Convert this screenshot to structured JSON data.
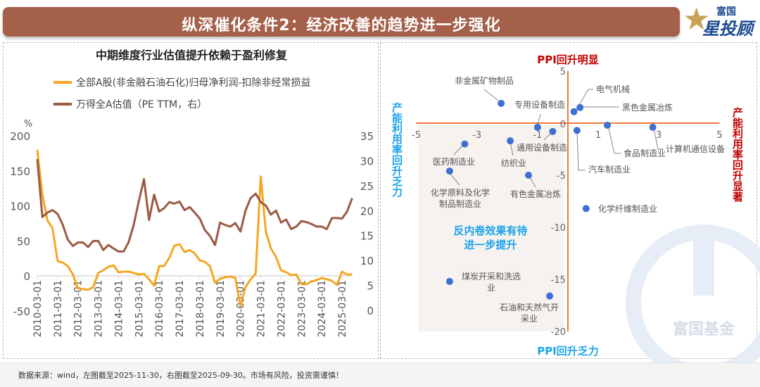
{
  "header": {
    "title": "纵深催化条件2：经济改善的趋势进一步强化"
  },
  "logo": {
    "top": "富国",
    "main": "星投顾",
    "watermark": "富国基金"
  },
  "footer": {
    "note": "数据来源：wind，左图截至2025-11-30，右图截至2025-09-30。市场有风险，投资需谨慎！"
  },
  "colors": {
    "banner": "#a5604a",
    "earnings": "#f5a623",
    "pe": "#9b5a43",
    "axis_orange": "#f07a3c",
    "dot": "#3f6fd0",
    "red": "#c00000",
    "blue": "#1aa3e8"
  },
  "chart_data": [
    {
      "type": "line",
      "title": "中期维度行业估值提升依赖于盈利修复",
      "y_unit": "%",
      "x_tick_labels": [
        "2010-03-01",
        "2011-03-01",
        "2012-03-01",
        "2013-03-01",
        "2014-03-01",
        "2015-03-01",
        "2016-03-01",
        "2017-03-01",
        "2018-03-01",
        "2019-03-01",
        "2020-03-01",
        "2021-03-01",
        "2022-03-01",
        "2023-03-01",
        "2024-03-01",
        "2025-03-01"
      ],
      "x_start": "2010-03",
      "x_frequency": "quarterly",
      "ylim_left": [
        -50,
        200
      ],
      "yticks_left": [
        -50,
        0,
        50,
        100,
        150,
        200
      ],
      "ylim_right": [
        0,
        35
      ],
      "yticks_right": [
        0,
        5,
        10,
        15,
        20,
        25,
        30,
        35
      ],
      "legend_position": "top-left",
      "series": [
        {
          "name": "全部A股(非金融石油石化)归母净利润-扣除非经常损益",
          "axis": "left",
          "values": [
            180,
            116,
            79,
            68,
            21,
            19,
            14,
            2,
            -18,
            -19,
            -20,
            -16,
            4,
            8,
            13,
            15,
            5,
            6,
            6,
            4,
            2,
            3,
            -5,
            -14,
            14,
            14,
            26,
            43,
            45,
            34,
            37,
            32,
            22,
            20,
            14,
            -10,
            -4,
            -2,
            -1,
            -3,
            -43,
            -16,
            -5,
            3,
            142,
            63,
            39,
            27,
            8,
            5,
            1,
            2,
            -12,
            -12,
            -8,
            -6,
            -3,
            -5,
            -7,
            -13,
            6,
            2,
            2
          ]
        },
        {
          "name": "万得全A估值（PE TTM，右）",
          "axis": "right",
          "values": [
            30.3,
            18.7,
            19.6,
            20.1,
            19.3,
            17.2,
            14.2,
            12.9,
            13.6,
            13.6,
            12.7,
            13.9,
            13.9,
            12.1,
            13.1,
            12.4,
            11.8,
            11.8,
            13.7,
            17.2,
            21.9,
            26.3,
            18.1,
            23.2,
            19.8,
            20.5,
            21.7,
            21.4,
            21.8,
            20.1,
            20.7,
            19.6,
            18.4,
            16.1,
            14.9,
            13.1,
            17.6,
            17.1,
            16.8,
            17.5,
            15.8,
            20.0,
            22.5,
            23.4,
            21.7,
            21.0,
            19.2,
            20.0,
            17.6,
            18.2,
            16.3,
            16.8,
            17.9,
            17.7,
            17.3,
            16.8,
            16.8,
            16.3,
            18.5,
            18.5,
            18.4,
            19.8,
            22.5
          ]
        }
      ]
    },
    {
      "type": "scatter",
      "xlim": [
        -5,
        5
      ],
      "xticks": [
        -5,
        -3,
        -1,
        1,
        3,
        5
      ],
      "ylim": [
        -20,
        5
      ],
      "yticks": [
        5,
        0,
        -5,
        -10,
        -15,
        -20
      ],
      "quadrant_labels": {
        "top": "PPI回升明显",
        "bottom": "PPI回升乏力",
        "left": "产能利用率回升乏力",
        "right": "产能利用率回升显著"
      },
      "annotation": [
        "反内卷效果有待",
        "进一步提升"
      ],
      "points": [
        {
          "label": [
            "非金属矿物制品"
          ],
          "x": -2.2,
          "y": 1.9
        },
        {
          "label": [
            "专用设备制造"
          ],
          "x": -1.0,
          "y": -0.4
        },
        {
          "label": [
            "通用设备制造"
          ],
          "x": -0.5,
          "y": -0.8
        },
        {
          "label": [
            "电气机械"
          ],
          "x": 0.2,
          "y": 1.1
        },
        {
          "label": [
            "黑色金属冶炼"
          ],
          "x": 0.4,
          "y": 1.5
        },
        {
          "label": [
            "汽车制造业"
          ],
          "x": 0.3,
          "y": -0.7
        },
        {
          "label": [
            "食品制造业"
          ],
          "x": 1.3,
          "y": -0.2
        },
        {
          "label": [
            "计算机通信设备"
          ],
          "x": 2.8,
          "y": -0.4
        },
        {
          "label": [
            "医药制造业"
          ],
          "x": -3.4,
          "y": -2.0
        },
        {
          "label": [
            "纺织业"
          ],
          "x": -1.9,
          "y": -1.7
        },
        {
          "label": [
            "化学原料及化学",
            "制品制造业"
          ],
          "x": -3.9,
          "y": -4.6
        },
        {
          "label": [
            "有色金属冶炼"
          ],
          "x": -1.3,
          "y": -5.0
        },
        {
          "label": [
            "化学纤维制造业"
          ],
          "x": 0.6,
          "y": -8.2
        },
        {
          "label": [
            "煤炭开采和洗选",
            "业"
          ],
          "x": -3.9,
          "y": -15.2
        },
        {
          "label": [
            "石油和天然气开",
            "采业"
          ],
          "x": -0.6,
          "y": -16.6
        }
      ]
    }
  ]
}
